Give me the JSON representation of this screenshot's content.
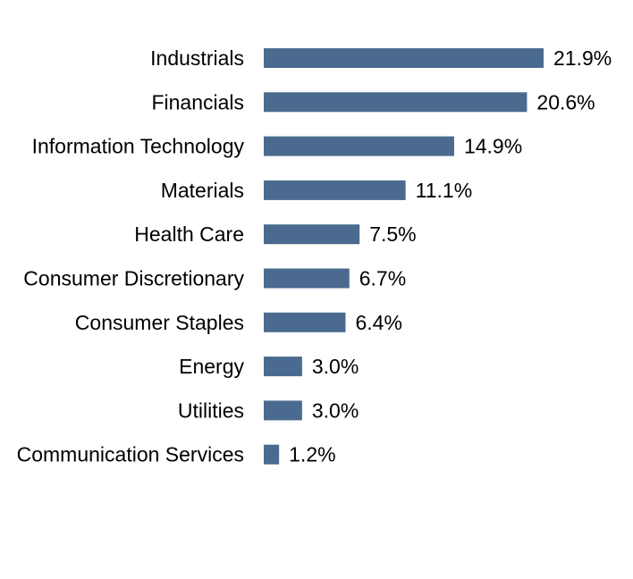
{
  "chart_data": {
    "type": "bar",
    "orientation": "horizontal",
    "title": "",
    "xlabel": "",
    "ylabel": "",
    "grid": false,
    "bar_color": "#4a6b8f",
    "value_suffix": "%",
    "xlim": [
      0,
      21.9
    ],
    "categories": [
      "Industrials",
      "Financials",
      "Information Technology",
      "Materials",
      "Health Care",
      "Consumer Discretionary",
      "Consumer Staples",
      "Energy",
      "Utilities",
      "Communication Services"
    ],
    "values": [
      21.9,
      20.6,
      14.9,
      11.1,
      7.5,
      6.7,
      6.4,
      3.0,
      3.0,
      1.2
    ],
    "value_labels": [
      "21.9%",
      "20.6%",
      "14.9%",
      "11.1%",
      "7.5%",
      "6.7%",
      "6.4%",
      "3.0%",
      "3.0%",
      "1.2%"
    ]
  }
}
